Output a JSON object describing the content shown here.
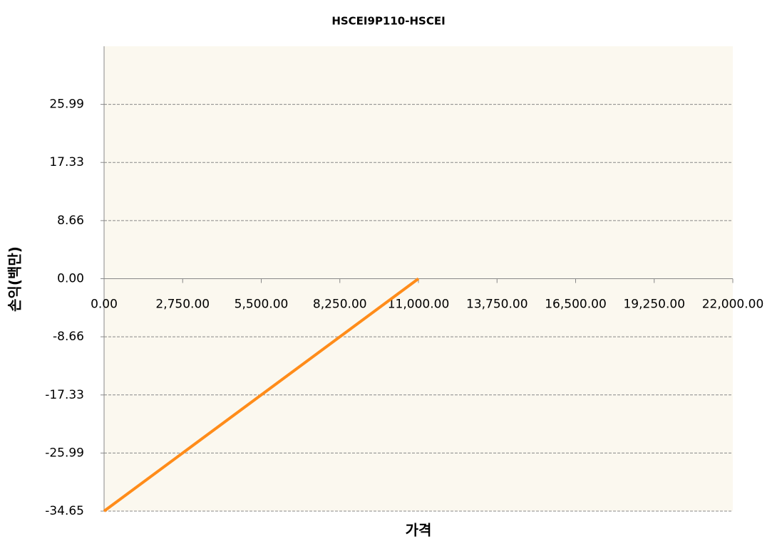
{
  "chart_data": {
    "type": "line",
    "title": "HSCEI9P110-HSCEI",
    "xlabel": "가격",
    "ylabel": "손익(백만)",
    "x": [
      0,
      11000
    ],
    "series": [
      {
        "name": "HSCEI9P110-HSCEI",
        "color": "#ff8c1a",
        "values": [
          -34.65,
          0
        ]
      }
    ],
    "xlim": [
      0,
      22000
    ],
    "xticks": [
      {
        "value": 0,
        "label": "0.00"
      },
      {
        "value": 2750,
        "label": "2,750.00"
      },
      {
        "value": 5500,
        "label": "5,500.00"
      },
      {
        "value": 8250,
        "label": "8,250.00"
      },
      {
        "value": 11000,
        "label": "11,000.00"
      },
      {
        "value": 13750,
        "label": "13,750.00"
      },
      {
        "value": 16500,
        "label": "16,500.00"
      },
      {
        "value": 19250,
        "label": "19,250.00"
      },
      {
        "value": 22000,
        "label": "22,000.00"
      }
    ],
    "ylim": [
      -34.65,
      34.65
    ],
    "yticks": [
      -34.65,
      -25.99,
      -17.33,
      -8.66,
      {
        "value": 0,
        "label": "0.00"
      },
      8.66,
      17.33,
      25.99
    ],
    "grid": true
  }
}
